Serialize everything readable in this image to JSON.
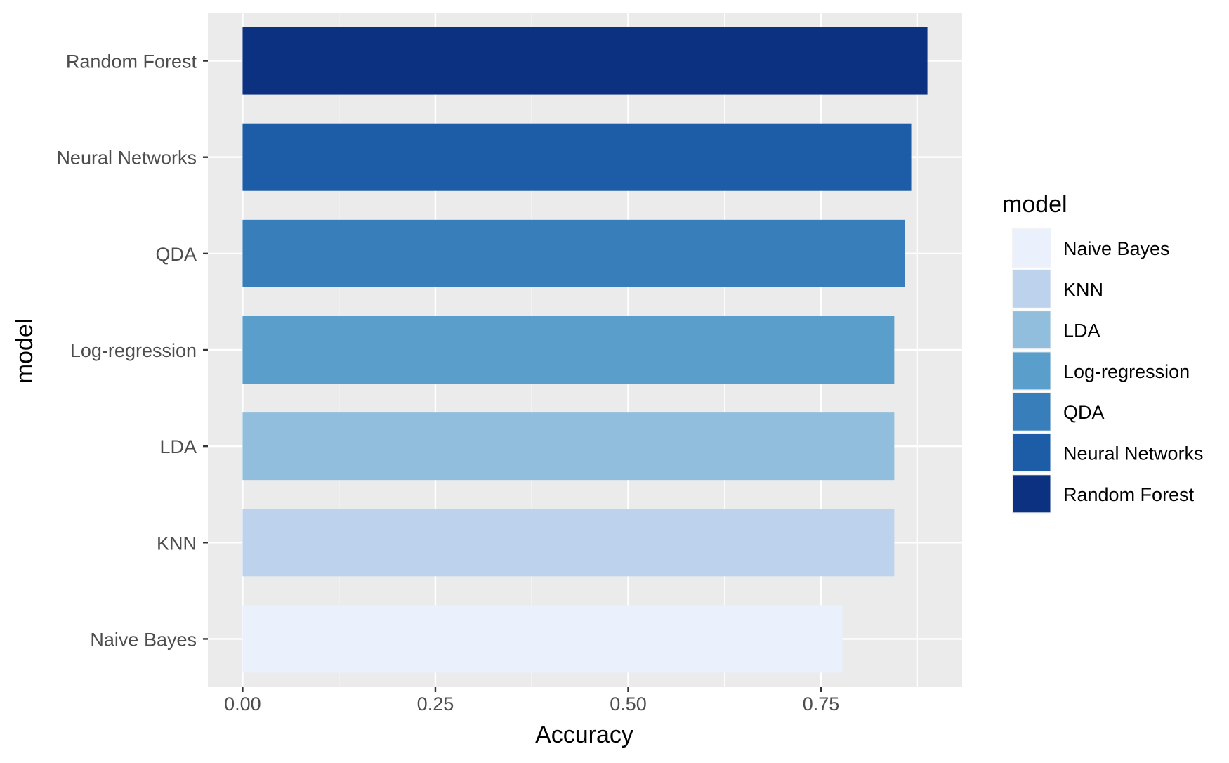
{
  "chart_data": {
    "type": "bar",
    "orientation": "horizontal",
    "categories": [
      "Naive Bayes",
      "KNN",
      "LDA",
      "Log-regression",
      "QDA",
      "Neural Networks",
      "Random Forest"
    ],
    "values": [
      0.778,
      0.845,
      0.845,
      0.845,
      0.859,
      0.867,
      0.888
    ],
    "colors": [
      "#EAF0FC",
      "#BDD2EC",
      "#90BEDC",
      "#5A9FCC",
      "#387EBB",
      "#1D5CA6",
      "#0C3180"
    ],
    "xlabel": "Accuracy",
    "ylabel": "model",
    "xlim": [
      -0.045,
      0.933
    ],
    "xticks": [
      0.0,
      0.25,
      0.5,
      0.75
    ],
    "xtick_labels": [
      "0.00",
      "0.25",
      "0.50",
      "0.75"
    ],
    "grid": true,
    "legend": {
      "title": "model",
      "placement": "right",
      "entries": [
        "Naive Bayes",
        "KNN",
        "LDA",
        "Log-regression",
        "QDA",
        "Neural Networks",
        "Random Forest"
      ]
    }
  }
}
